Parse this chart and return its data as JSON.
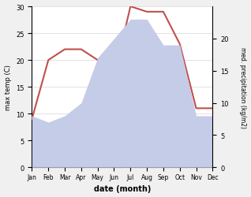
{
  "months": [
    "Jan",
    "Feb",
    "Mar",
    "Apr",
    "May",
    "Jun",
    "Jul",
    "Aug",
    "Sep",
    "Oct",
    "Nov",
    "Dec"
  ],
  "temperature": [
    9,
    20,
    22,
    22,
    20,
    17,
    30,
    29,
    29,
    23,
    11,
    11
  ],
  "precipitation": [
    8,
    7,
    8,
    10,
    17,
    20,
    23,
    23,
    19,
    19,
    8,
    8
  ],
  "temp_color": "#c0504d",
  "precip_fill_color": "#c5cce8",
  "xlabel": "date (month)",
  "ylabel_left": "max temp (C)",
  "ylabel_right": "med. precipitation (kg/m2)",
  "ylim_left": [
    0,
    30
  ],
  "ylim_right": [
    0,
    25
  ],
  "yticks_left": [
    0,
    5,
    10,
    15,
    20,
    25,
    30
  ],
  "yticks_right": [
    0,
    5,
    10,
    15,
    20
  ],
  "bg_color": "#f0f0f0",
  "plot_bg": "#ffffff"
}
